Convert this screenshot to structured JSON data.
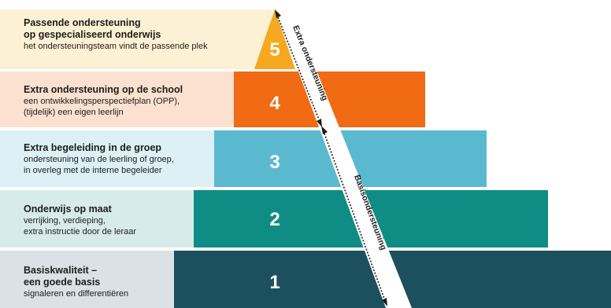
{
  "levels": [
    {
      "number": "5",
      "title_lines": [
        "Passende ondersteuning",
        "op gespecialiseerd onderwijs"
      ],
      "desc_lines": [
        "het ondersteuningsteam vindt de passende plek"
      ],
      "bg_color": "#fdf1d5",
      "bar_color": "#f6a821"
    },
    {
      "number": "4",
      "title_lines": [
        "Extra ondersteuning op de school"
      ],
      "desc_lines": [
        "een ontwikkelingsperspectiefplan (OPP),",
        "(tijdelijk) een eigen leerlijn"
      ],
      "bg_color": "#fce1d0",
      "bar_color": "#f06b13"
    },
    {
      "number": "3",
      "title_lines": [
        "Extra begeleiding in de groep"
      ],
      "desc_lines": [
        "ondersteuning van de leerling of groep,",
        "in overleg met de interne begeleider"
      ],
      "bg_color": "#dcf0f6",
      "bar_color": "#5bb9cf"
    },
    {
      "number": "2",
      "title_lines": [
        "Onderwijs op maat"
      ],
      "desc_lines": [
        "verrijking, verdieping,",
        "extra instructie door de leraar"
      ],
      "bg_color": "#d6ebea",
      "bar_color": "#0f8d84"
    },
    {
      "number": "1",
      "title_lines": [
        "Basiskwaliteit –",
        "een goede basis"
      ],
      "desc_lines": [
        "signaleren en differentiëren"
      ],
      "bg_color": "#dbe1e5",
      "bar_color": "#1d505f"
    }
  ],
  "arrow": {
    "upper_label": "Extra ondersteuning",
    "lower_label": "Basisondersteuning",
    "color": "#1d1d1b"
  }
}
